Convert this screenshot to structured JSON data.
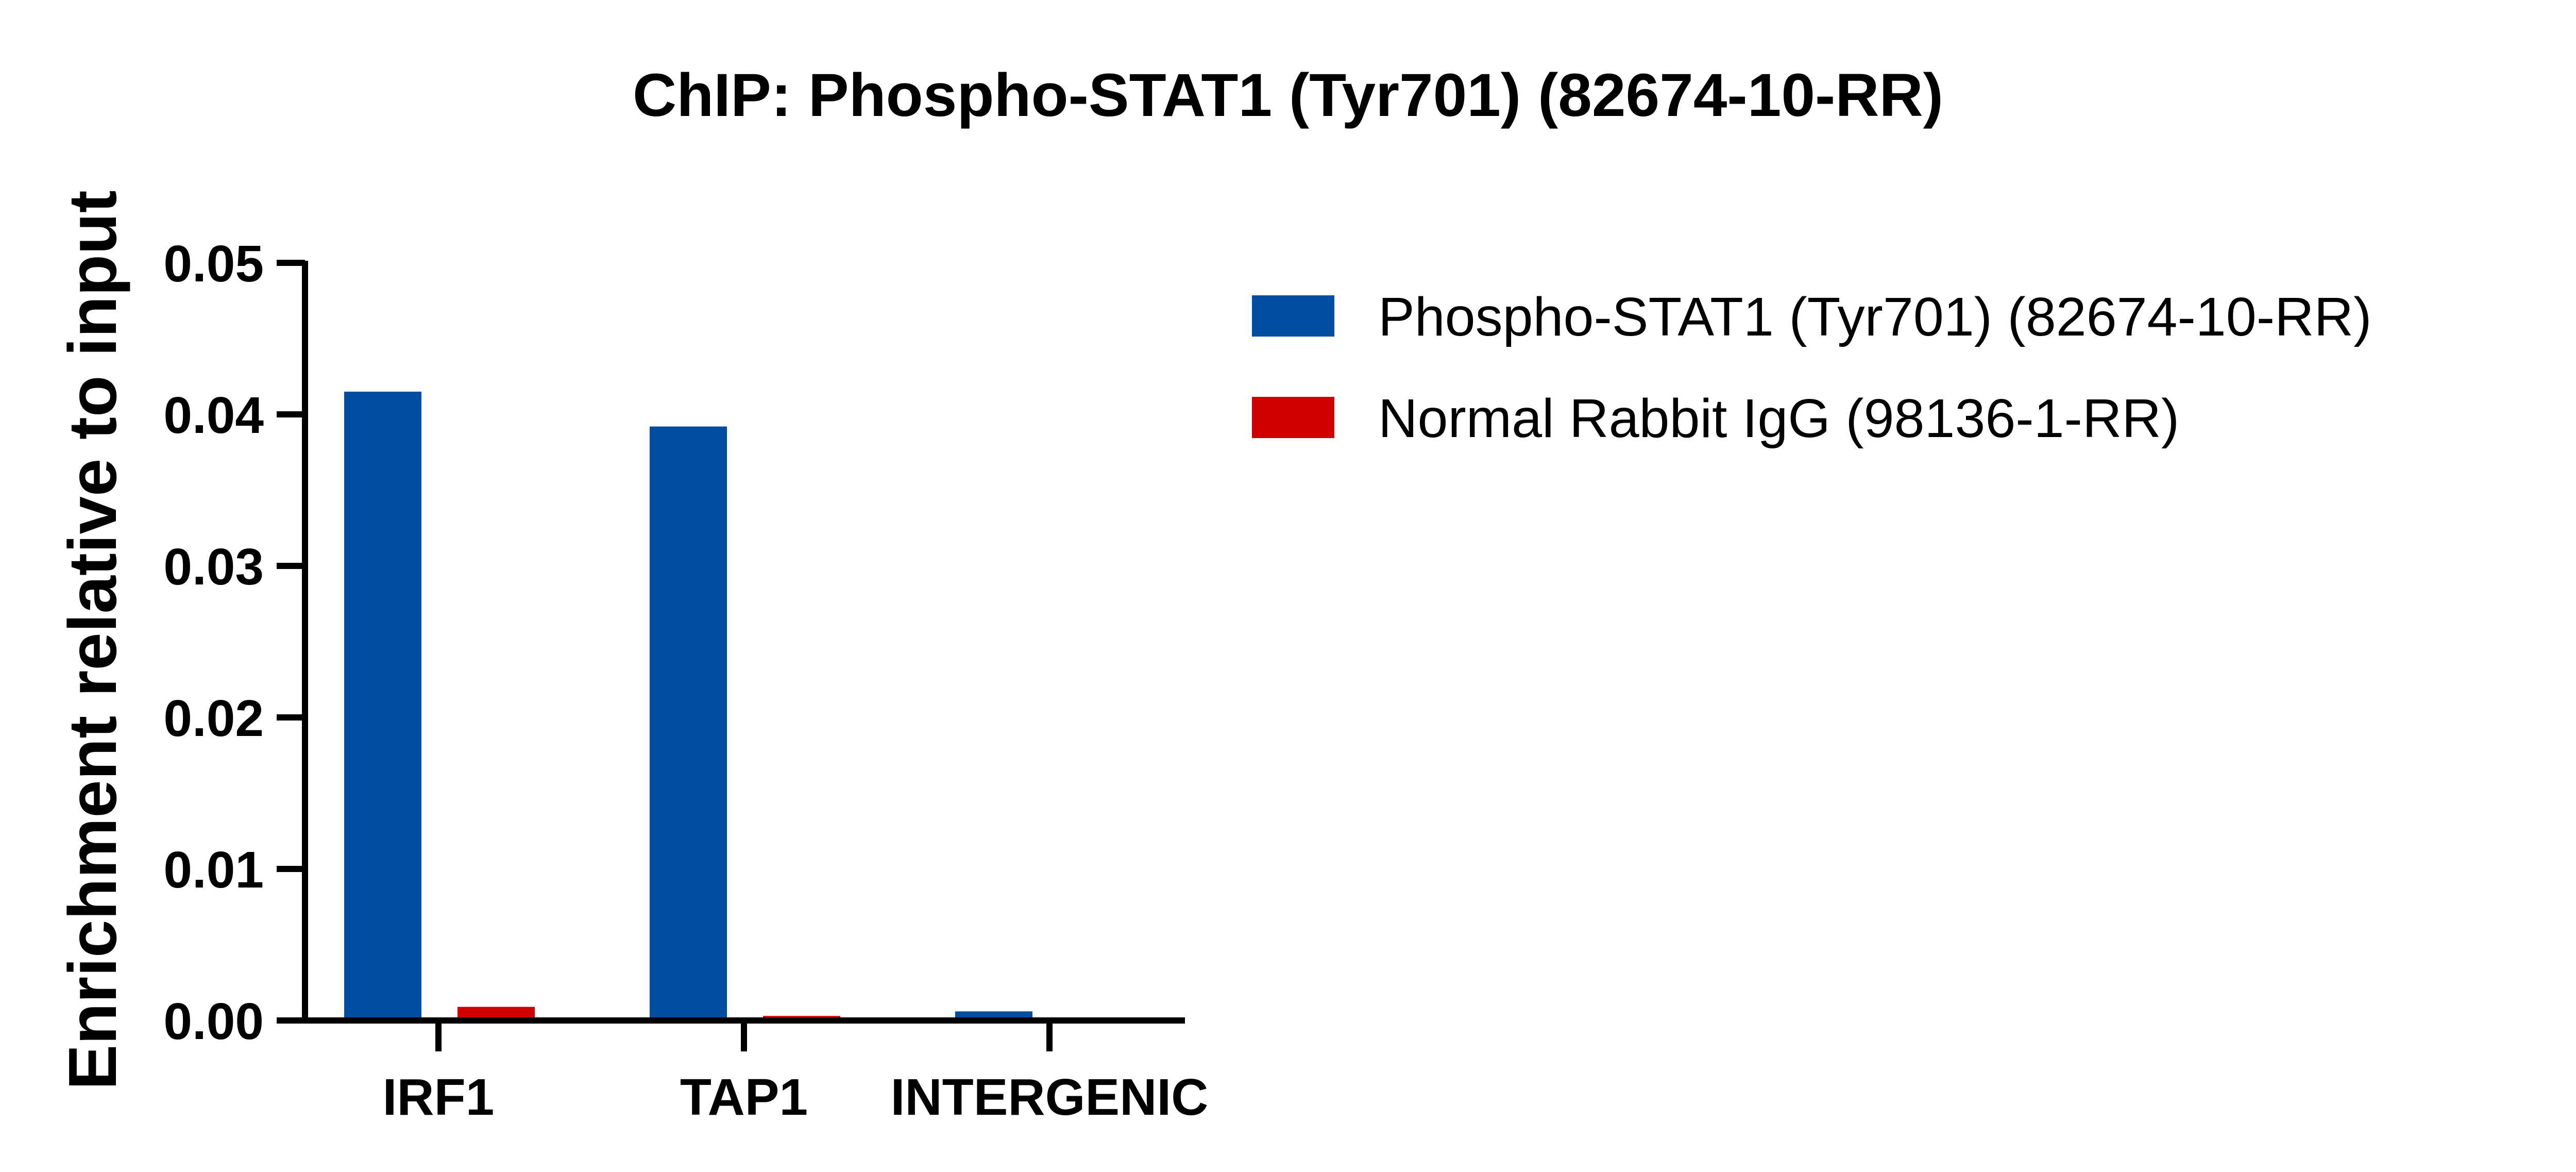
{
  "chart_data": {
    "type": "bar",
    "title": "ChIP: Phospho-STAT1 (Tyr701) (82674-10-RR)",
    "xlabel": "",
    "ylabel": "Enrichment relative to input",
    "categories": [
      "IRF1",
      "TAP1",
      "INTERGENIC"
    ],
    "series": [
      {
        "name": "Phospho-STAT1 (Tyr701) (82674-10-RR)",
        "color": "#004EA2",
        "values": [
          0.0415,
          0.0392,
          0.0006
        ]
      },
      {
        "name": "Normal Rabbit IgG (98136-1-RR)",
        "color": "#D10000",
        "values": [
          0.0009,
          0.0003,
          0.0002
        ]
      }
    ],
    "ylim": [
      0,
      0.05
    ],
    "yticks": [
      "0.00",
      "0.01",
      "0.02",
      "0.03",
      "0.04",
      "0.05"
    ],
    "grid": false,
    "legend_position": "top-right"
  }
}
